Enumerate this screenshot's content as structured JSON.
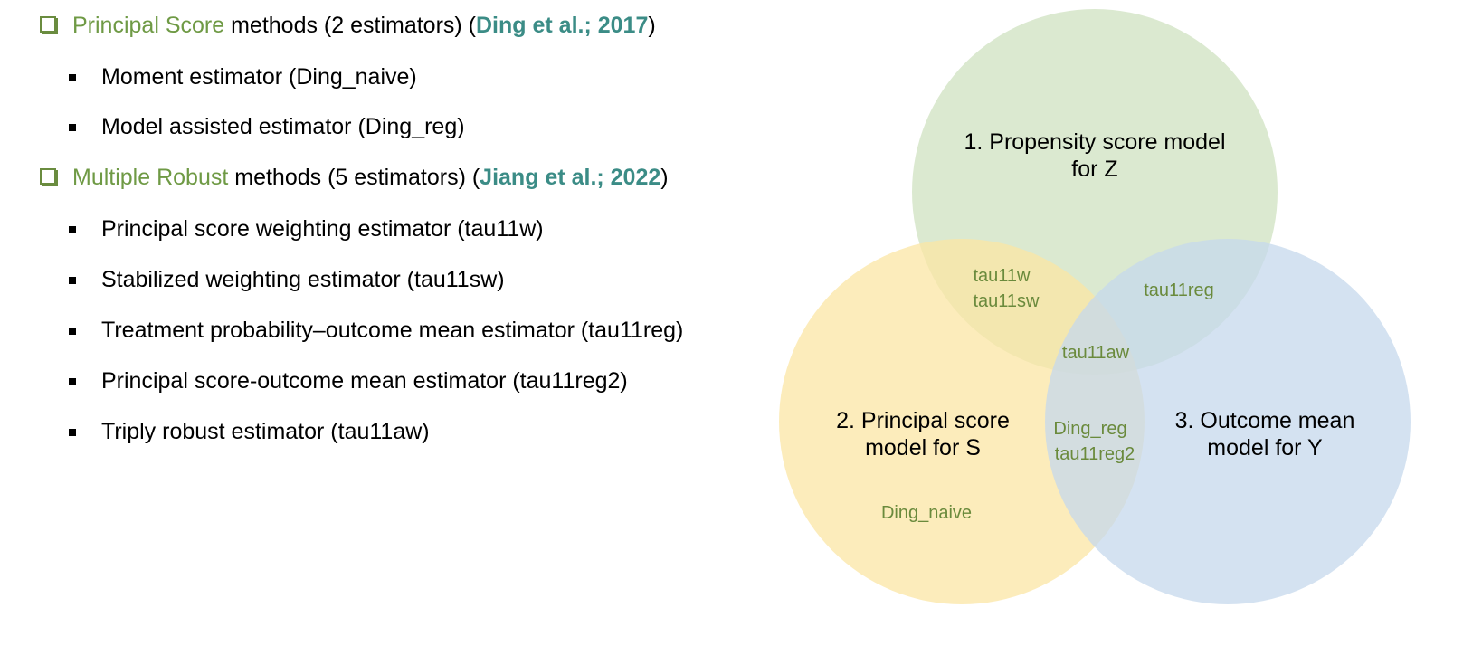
{
  "sections": [
    {
      "name": "Principal Score",
      "text_before": " methods (2 estimators) (",
      "citation": "Ding et al.; 2017",
      "text_after": ")",
      "items": [
        "Moment estimator (Ding_naive)",
        "Model assisted estimator (Ding_reg)"
      ]
    },
    {
      "name": "Multiple Robust",
      "text_before": " methods (5 estimators) (",
      "citation": "Jiang et al.; 2022",
      "text_after": ")",
      "items": [
        "Principal score weighting estimator (tau11w)",
        "Stabilized weighting estimator (tau11sw)",
        "Treatment probability–outcome mean estimator (tau11reg)",
        "Principal score-outcome mean estimator (tau11reg2)",
        "Triply robust estimator (tau11aw)"
      ]
    }
  ],
  "venn": {
    "circles": [
      {
        "lines": [
          "1. Propensity score model",
          "for Z"
        ],
        "color": "#cfe2c0"
      },
      {
        "lines": [
          "2. Principal score",
          "model for S"
        ],
        "color": "#fbe6a4"
      },
      {
        "lines": [
          "3. Outcome mean",
          "model for Y"
        ],
        "color": "#c5d8ec"
      }
    ],
    "regions": {
      "z_and_s": [
        "tau11w",
        "tau11sw"
      ],
      "z_and_y": [
        "tau11reg"
      ],
      "all_three": [
        "tau11aw"
      ],
      "s_and_y": [
        "Ding_reg",
        "tau11reg2"
      ],
      "s_only": [
        "Ding_naive"
      ]
    },
    "estimator_color": "#6a8a3c"
  },
  "colors": {
    "method_name": "#6f9a45",
    "citation": "#3b8c86",
    "checkbox": "#6a8c3f"
  }
}
